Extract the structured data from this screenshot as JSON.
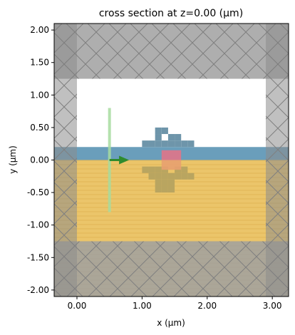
{
  "chart_data": {
    "type": "heatmap",
    "title": "cross section at z=0.00 (μm)",
    "xlabel": "x (μm)",
    "ylabel": "y (μm)",
    "xlim": [
      -0.35,
      3.25
    ],
    "ylim": [
      -2.1,
      2.1
    ],
    "xticks": [
      {
        "value": 0.0,
        "label": "0.00"
      },
      {
        "value": 1.0,
        "label": "1.00"
      },
      {
        "value": 2.0,
        "label": "2.00"
      },
      {
        "value": 3.0,
        "label": "3.00"
      }
    ],
    "yticks": [
      {
        "value": 2.0,
        "label": "2.00"
      },
      {
        "value": 1.5,
        "label": "1.50"
      },
      {
        "value": 1.0,
        "label": "1.00"
      },
      {
        "value": 0.5,
        "label": "0.50"
      },
      {
        "value": 0.0,
        "label": "0.00"
      },
      {
        "value": -0.5,
        "label": "-0.50"
      },
      {
        "value": -1.0,
        "label": "-1.00"
      },
      {
        "value": -1.5,
        "label": "-1.50"
      },
      {
        "value": -2.0,
        "label": "-2.00"
      }
    ],
    "grid": false,
    "colors": {
      "pml": "#a0a0a0",
      "pml_side": "#8c8c8c",
      "core_layer": "#6a9ebb",
      "substrate": "#ebc56a",
      "design_pixels": "#6e95aa",
      "design_lower": "#b9a560",
      "region": "#e0748a",
      "region_lower": "#e8a070",
      "source": "#a8dca0",
      "arrow": "#2e8b2e"
    },
    "regions": [
      {
        "name": "top_pml",
        "x": [
          -0.35,
          3.25
        ],
        "y": [
          1.25,
          2.1
        ]
      },
      {
        "name": "bottom_pml",
        "x": [
          -0.35,
          3.25
        ],
        "y": [
          -2.1,
          -1.25
        ]
      },
      {
        "name": "left_pml",
        "x": [
          -0.35,
          0.0
        ],
        "y": [
          -2.1,
          2.1
        ]
      },
      {
        "name": "right_pml",
        "x": [
          2.9,
          3.25
        ],
        "y": [
          -2.1,
          2.1
        ]
      },
      {
        "name": "core_layer",
        "x": [
          -0.35,
          3.25
        ],
        "y": [
          0.0,
          0.2
        ]
      },
      {
        "name": "substrate",
        "x": [
          -0.35,
          3.25
        ],
        "y": [
          -2.1,
          0.0
        ]
      }
    ],
    "design_pixels_above": [
      [
        1.2,
        0.45
      ],
      [
        1.3,
        0.45
      ],
      [
        1.2,
        0.35
      ],
      [
        1.4,
        0.35
      ],
      [
        1.5,
        0.35
      ],
      [
        1.0,
        0.25
      ],
      [
        1.1,
        0.25
      ],
      [
        1.2,
        0.25
      ],
      [
        1.3,
        0.25
      ],
      [
        1.4,
        0.25
      ],
      [
        1.5,
        0.25
      ],
      [
        1.6,
        0.25
      ],
      [
        1.7,
        0.25
      ]
    ],
    "design_pixels_below": [
      [
        1.0,
        -0.15
      ],
      [
        1.1,
        -0.15
      ],
      [
        1.2,
        -0.15
      ],
      [
        1.3,
        -0.15
      ],
      [
        1.5,
        -0.15
      ],
      [
        1.6,
        -0.15
      ],
      [
        1.1,
        -0.25
      ],
      [
        1.2,
        -0.25
      ],
      [
        1.3,
        -0.25
      ],
      [
        1.4,
        -0.25
      ],
      [
        1.5,
        -0.25
      ],
      [
        1.6,
        -0.25
      ],
      [
        1.7,
        -0.25
      ],
      [
        1.2,
        -0.35
      ],
      [
        1.3,
        -0.35
      ],
      [
        1.4,
        -0.35
      ],
      [
        1.2,
        -0.45
      ],
      [
        1.3,
        -0.45
      ],
      [
        1.4,
        -0.45
      ]
    ],
    "monitor_region": {
      "x": [
        1.3,
        1.6
      ],
      "y": [
        0.0,
        0.15
      ]
    },
    "source_line": {
      "x": 0.5,
      "y": [
        -0.8,
        0.8
      ]
    },
    "source_arrow": {
      "x": [
        0.5,
        0.8
      ],
      "y": 0.0
    }
  }
}
